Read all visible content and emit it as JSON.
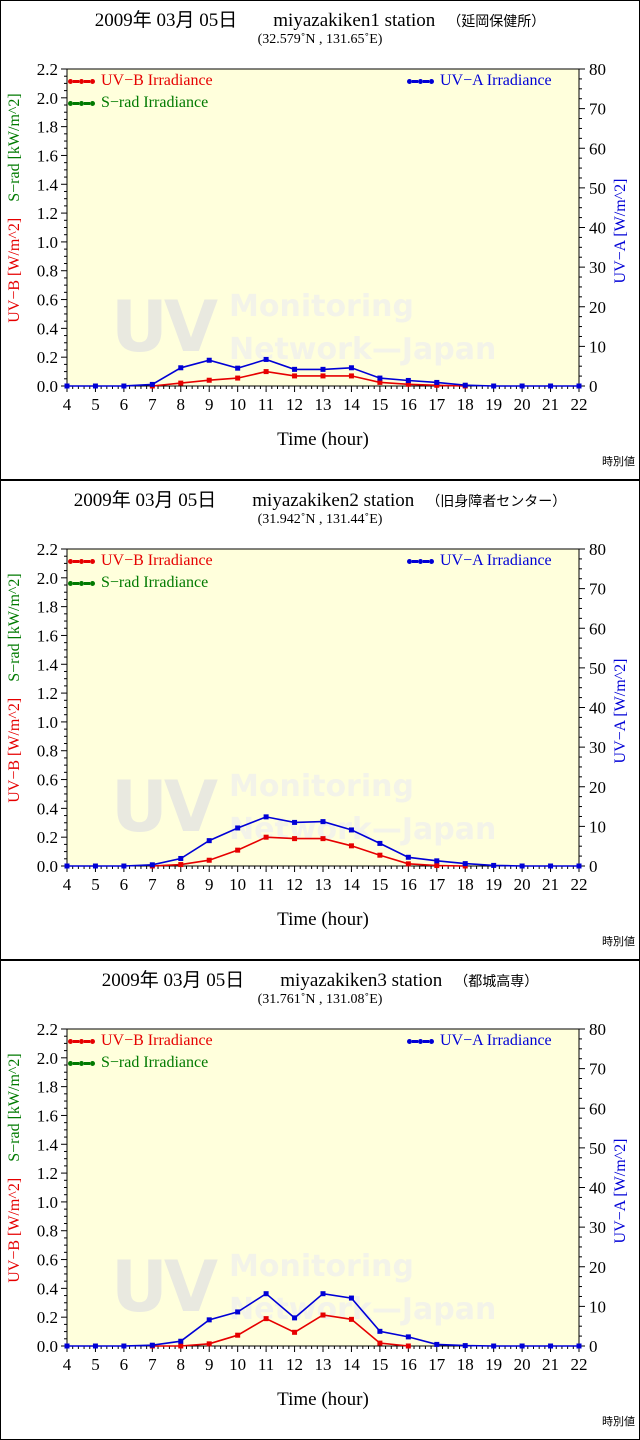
{
  "colors": {
    "uvb": "#e60000",
    "srad": "#007a00",
    "uva": "#0000d6",
    "plot_bg": "#ffffdc",
    "axis": "#000000",
    "watermark_large": "#e9e9e0",
    "watermark_small": "#f3f3e9"
  },
  "panels": [
    {
      "title": {
        "date": "2009年 03月 05日",
        "station": "miyazakiken1 station",
        "site": "（延岡保健所）"
      },
      "coords": "(32.579˚N , 131.65˚E)",
      "legend": {
        "uvb": "UV−B Irradiance",
        "srad": "S−rad Irradiance",
        "uva": "UV−A Irradiance"
      },
      "left_axis_label_uvb": "UV−B [W/m^2]",
      "left_axis_label_srad": "S−rad [kW/m^2]",
      "right_axis_label": "UV−A [W/m^2]",
      "xlabel": "Time (hour)",
      "note": "時別値",
      "watermark": {
        "large": "UV",
        "line1": "Monitoring",
        "line2": "Network—Japan"
      },
      "chart_data": {
        "type": "line",
        "title": "2009年 03月 05日 miyazakiken1 station （延岡保健所） (32.579˚N , 131.65˚E)",
        "xlabel": "Time (hour)",
        "xlim": [
          4,
          22
        ],
        "left_ylim": [
          0,
          2.2
        ],
        "right_ylim": [
          0,
          80
        ],
        "x": [
          4,
          5,
          6,
          7,
          8,
          9,
          10,
          11,
          12,
          13,
          14,
          15,
          16,
          17,
          18,
          19,
          20,
          21,
          22
        ],
        "x_ticks": [
          "4",
          "5",
          "6",
          "7",
          "8",
          "9",
          "10",
          "11",
          "12",
          "13",
          "14",
          "15",
          "16",
          "17",
          "18",
          "19",
          "20",
          "21",
          "22"
        ],
        "left_ticks": [
          "0.0",
          "0.2",
          "0.4",
          "0.6",
          "0.8",
          "1.0",
          "1.2",
          "1.4",
          "1.6",
          "1.8",
          "2.0",
          "2.2"
        ],
        "right_ticks": [
          "0",
          "10",
          "20",
          "30",
          "40",
          "50",
          "60",
          "70",
          "80"
        ],
        "series": [
          {
            "name": "UV−B Irradiance",
            "axis": "left",
            "color": "#e60000",
            "values": [
              null,
              null,
              null,
              0,
              0.02,
              0.04,
              0.055,
              0.1,
              0.07,
              0.07,
              0.07,
              0.025,
              0.012,
              0.005,
              0,
              null,
              null,
              null,
              null
            ]
          },
          {
            "name": "S−rad Irradiance",
            "axis": "left",
            "color": "#007a00",
            "visible": false,
            "values": []
          },
          {
            "name": "UV−A Irradiance",
            "axis": "right",
            "color": "#0000d6",
            "values": [
              0,
              0,
              0,
              0.4,
              4.6,
              6.5,
              4.5,
              6.7,
              4.2,
              4.2,
              4.6,
              2.0,
              1.4,
              0.9,
              0.2,
              0,
              0,
              0,
              0
            ]
          }
        ]
      }
    },
    {
      "title": {
        "date": "2009年 03月 05日",
        "station": "miyazakiken2 station",
        "site": "（旧身障者センター）"
      },
      "coords": "(31.942˚N , 131.44˚E)",
      "legend": {
        "uvb": "UV−B Irradiance",
        "srad": "S−rad Irradiance",
        "uva": "UV−A Irradiance"
      },
      "left_axis_label_uvb": "UV−B [W/m^2]",
      "left_axis_label_srad": "S−rad [kW/m^2]",
      "right_axis_label": "UV−A [W/m^2]",
      "xlabel": "Time (hour)",
      "note": "時別値",
      "watermark": {
        "large": "UV",
        "line1": "Monitoring",
        "line2": "Network—Japan"
      },
      "chart_data": {
        "type": "line",
        "title": "2009年 03月 05日 miyazakiken2 station （旧身障者センター） (31.942˚N , 131.44˚E)",
        "xlabel": "Time (hour)",
        "xlim": [
          4,
          22
        ],
        "left_ylim": [
          0,
          2.2
        ],
        "right_ylim": [
          0,
          80
        ],
        "x": [
          4,
          5,
          6,
          7,
          8,
          9,
          10,
          11,
          12,
          13,
          14,
          15,
          16,
          17,
          18,
          19,
          20,
          21,
          22
        ],
        "x_ticks": [
          "4",
          "5",
          "6",
          "7",
          "8",
          "9",
          "10",
          "11",
          "12",
          "13",
          "14",
          "15",
          "16",
          "17",
          "18",
          "19",
          "20",
          "21",
          "22"
        ],
        "left_ticks": [
          "0.0",
          "0.2",
          "0.4",
          "0.6",
          "0.8",
          "1.0",
          "1.2",
          "1.4",
          "1.6",
          "1.8",
          "2.0",
          "2.2"
        ],
        "right_ticks": [
          "0",
          "10",
          "20",
          "30",
          "40",
          "50",
          "60",
          "70",
          "80"
        ],
        "series": [
          {
            "name": "UV−B Irradiance",
            "axis": "left",
            "color": "#e60000",
            "values": [
              null,
              null,
              null,
              0,
              0.01,
              0.04,
              0.11,
              0.2,
              0.19,
              0.19,
              0.14,
              0.075,
              0.015,
              0.003,
              0,
              null,
              null,
              null,
              null
            ]
          },
          {
            "name": "S−rad Irradiance",
            "axis": "left",
            "color": "#007a00",
            "visible": false,
            "values": []
          },
          {
            "name": "UV−A Irradiance",
            "axis": "right",
            "color": "#0000d6",
            "values": [
              0,
              0,
              0,
              0.3,
              1.9,
              6.4,
              9.6,
              12.4,
              11.0,
              11.2,
              9.1,
              5.7,
              2.2,
              1.3,
              0.6,
              0.15,
              0,
              0,
              0
            ]
          }
        ]
      }
    },
    {
      "title": {
        "date": "2009年 03月 05日",
        "station": "miyazakiken3 station",
        "site": "（都城高専）"
      },
      "coords": "(31.761˚N , 131.08˚E)",
      "legend": {
        "uvb": "UV−B Irradiance",
        "srad": "S−rad Irradiance",
        "uva": "UV−A Irradiance"
      },
      "left_axis_label_uvb": "UV−B [W/m^2]",
      "left_axis_label_srad": "S−rad [kW/m^2]",
      "right_axis_label": "UV−A [W/m^2]",
      "xlabel": "Time (hour)",
      "note": "時別値",
      "watermark": {
        "large": "UV",
        "line1": "Monitoring",
        "line2": "Network—Japan"
      },
      "chart_data": {
        "type": "line",
        "title": "2009年 03月 05日 miyazakiken3 station （都城高専） (31.761˚N , 131.08˚E)",
        "xlabel": "Time (hour)",
        "xlim": [
          4,
          22
        ],
        "left_ylim": [
          0,
          2.2
        ],
        "right_ylim": [
          0,
          80
        ],
        "x": [
          4,
          5,
          6,
          7,
          8,
          9,
          10,
          11,
          12,
          13,
          14,
          15,
          16,
          17,
          18,
          19,
          20,
          21,
          22
        ],
        "x_ticks": [
          "4",
          "5",
          "6",
          "7",
          "8",
          "9",
          "10",
          "11",
          "12",
          "13",
          "14",
          "15",
          "16",
          "17",
          "18",
          "19",
          "20",
          "21",
          "22"
        ],
        "left_ticks": [
          "0.0",
          "0.2",
          "0.4",
          "0.6",
          "0.8",
          "1.0",
          "1.2",
          "1.4",
          "1.6",
          "1.8",
          "2.0",
          "2.2"
        ],
        "right_ticks": [
          "0",
          "10",
          "20",
          "30",
          "40",
          "50",
          "60",
          "70",
          "80"
        ],
        "series": [
          {
            "name": "UV−B Irradiance",
            "axis": "left",
            "color": "#e60000",
            "values": [
              null,
              null,
              null,
              0,
              0,
              0.015,
              0.075,
              0.19,
              0.095,
              0.215,
              0.185,
              0.02,
              0,
              null,
              null,
              null,
              null,
              null,
              null
            ]
          },
          {
            "name": "S−rad Irradiance",
            "axis": "left",
            "color": "#007a00",
            "visible": false,
            "values": []
          },
          {
            "name": "UV−A Irradiance",
            "axis": "right",
            "color": "#0000d6",
            "values": [
              0,
              0,
              0,
              0.2,
              1.2,
              6.6,
              8.6,
              13.2,
              7.1,
              13.2,
              12.1,
              3.7,
              2.3,
              0.4,
              0.1,
              0,
              0,
              0,
              0
            ]
          }
        ]
      }
    }
  ]
}
